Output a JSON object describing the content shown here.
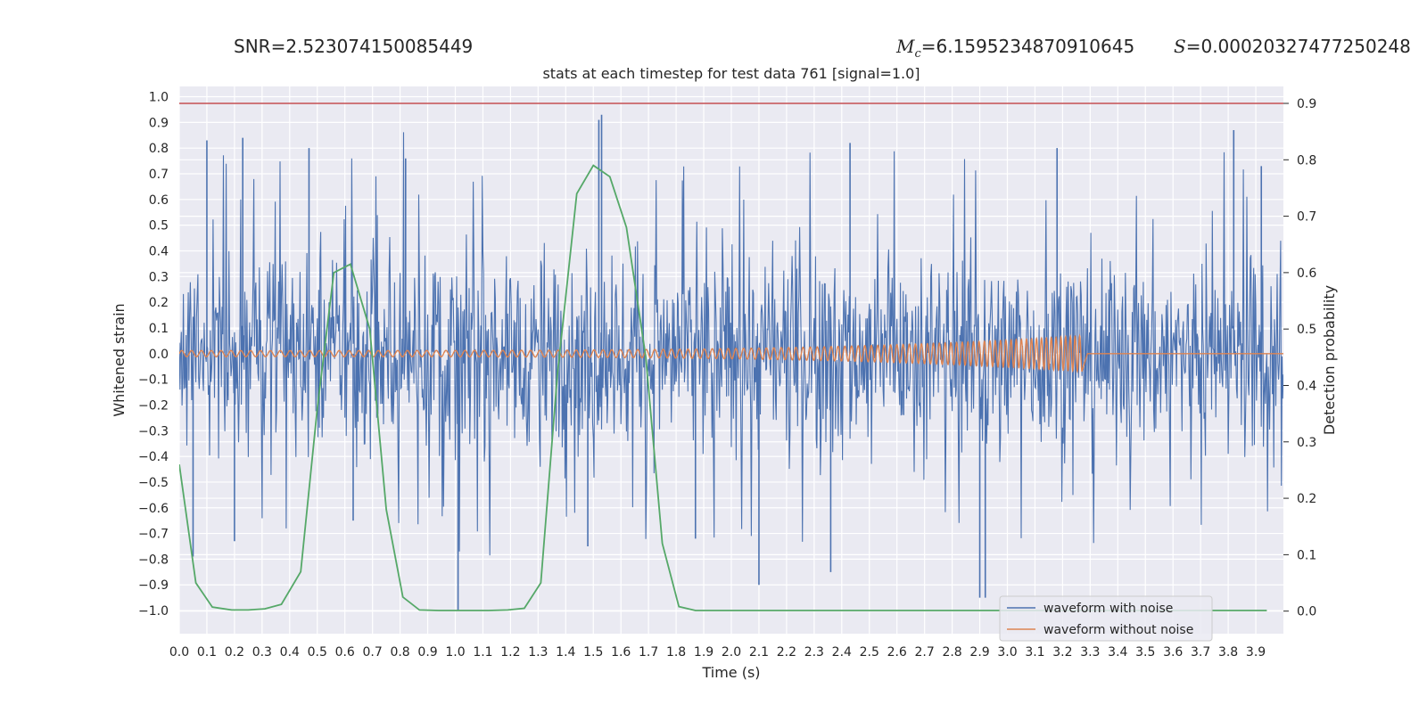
{
  "stats": {
    "snr_label": "SNR",
    "snr_value": "2.523074150085449",
    "mc_symbol": "M",
    "mc_subscript": "c",
    "mc_value": "6.1595234870910645",
    "s_symbol": "S",
    "s_value": "0.00020327477250248"
  },
  "chart_data": {
    "type": "line",
    "title": "stats at each timestep for test data 761 [signal=1.0]",
    "xlabel": "Time (s)",
    "ylabel": "Whitened strain",
    "y2label": "Detection probability",
    "xlim": [
      0.0,
      4.0
    ],
    "ylim": [
      -1.09,
      1.04
    ],
    "y2lim": [
      -0.04,
      0.93
    ],
    "x_ticks": [
      0.0,
      0.1,
      0.2,
      0.3,
      0.4,
      0.5,
      0.6,
      0.7,
      0.8,
      0.9,
      1.0,
      1.1,
      1.2,
      1.3,
      1.4,
      1.5,
      1.6,
      1.7,
      1.8,
      1.9,
      2.0,
      2.1,
      2.2,
      2.3,
      2.4,
      2.5,
      2.6,
      2.7,
      2.8,
      2.9,
      3.0,
      3.1,
      3.2,
      3.3,
      3.4,
      3.5,
      3.6,
      3.7,
      3.8,
      3.9
    ],
    "y_ticks": [
      1.0,
      0.9,
      0.8,
      0.7,
      0.6,
      0.5,
      0.4,
      0.3,
      0.2,
      0.1,
      0.0,
      -0.1,
      -0.2,
      -0.3,
      -0.4,
      -0.5,
      -0.6,
      -0.7,
      -0.8,
      -0.9,
      -1.0
    ],
    "y2_ticks": [
      0.9,
      0.8,
      0.7,
      0.6,
      0.5,
      0.4,
      0.3,
      0.2,
      0.1,
      0.0
    ],
    "grid": true,
    "legend_position": "lower right",
    "colors": {
      "noise": "#4c72b0",
      "clean": "#dd8452",
      "prob": "#55a868",
      "threshold": "#c44e52",
      "axes_bg": "#eaeaf2",
      "grid": "#ffffff",
      "text": "#262626"
    },
    "series": [
      {
        "name": "waveform with noise",
        "style": "dense noise",
        "band": [
          -0.22,
          0.22
        ],
        "peaks": [
          [
            0.1,
            0.83
          ],
          [
            0.23,
            0.84
          ],
          [
            0.47,
            0.8
          ],
          [
            0.82,
            0.76
          ],
          [
            1.01,
            -1.0
          ],
          [
            1.52,
            0.91
          ],
          [
            1.53,
            0.93
          ],
          [
            2.1,
            -0.9
          ],
          [
            2.43,
            0.82
          ],
          [
            2.9,
            -0.95
          ],
          [
            2.92,
            -0.95
          ],
          [
            3.18,
            0.8
          ],
          [
            3.82,
            0.87
          ],
          [
            3.92,
            0.73
          ],
          [
            0.05,
            -0.79
          ],
          [
            0.2,
            -0.73
          ],
          [
            0.63,
            -0.65
          ],
          [
            1.48,
            -0.75
          ],
          [
            1.87,
            -0.72
          ],
          [
            2.36,
            -0.85
          ]
        ]
      },
      {
        "name": "waveform without noise",
        "style": "chirp",
        "merger_time": 3.27,
        "amplitude_start": 0.012,
        "amplitude_end": 0.07,
        "frequency_start": 28,
        "frequency_end": 60
      },
      {
        "name": "",
        "axis": "right",
        "x": [
          0.0,
          0.06,
          0.12,
          0.19,
          0.25,
          0.31,
          0.37,
          0.44,
          0.5,
          0.56,
          0.62,
          0.69,
          0.75,
          0.81,
          0.87,
          0.94,
          1.0,
          1.06,
          1.12,
          1.19,
          1.25,
          1.31,
          1.37,
          1.44,
          1.5,
          1.56,
          1.62,
          1.69,
          1.75,
          1.81,
          1.87,
          1.94,
          2.0,
          2.5,
          3.0,
          3.5,
          3.94
        ],
        "values": [
          0.26,
          0.05,
          0.007,
          0.002,
          0.002,
          0.004,
          0.012,
          0.07,
          0.36,
          0.6,
          0.615,
          0.5,
          0.18,
          0.025,
          0.002,
          0.001,
          0.001,
          0.001,
          0.001,
          0.002,
          0.005,
          0.05,
          0.42,
          0.74,
          0.79,
          0.77,
          0.68,
          0.45,
          0.12,
          0.008,
          0.001,
          0.001,
          0.001,
          0.001,
          0.001,
          0.001,
          0.001
        ]
      },
      {
        "name": "",
        "axis": "right",
        "style": "threshold",
        "value": 0.9
      }
    ]
  }
}
